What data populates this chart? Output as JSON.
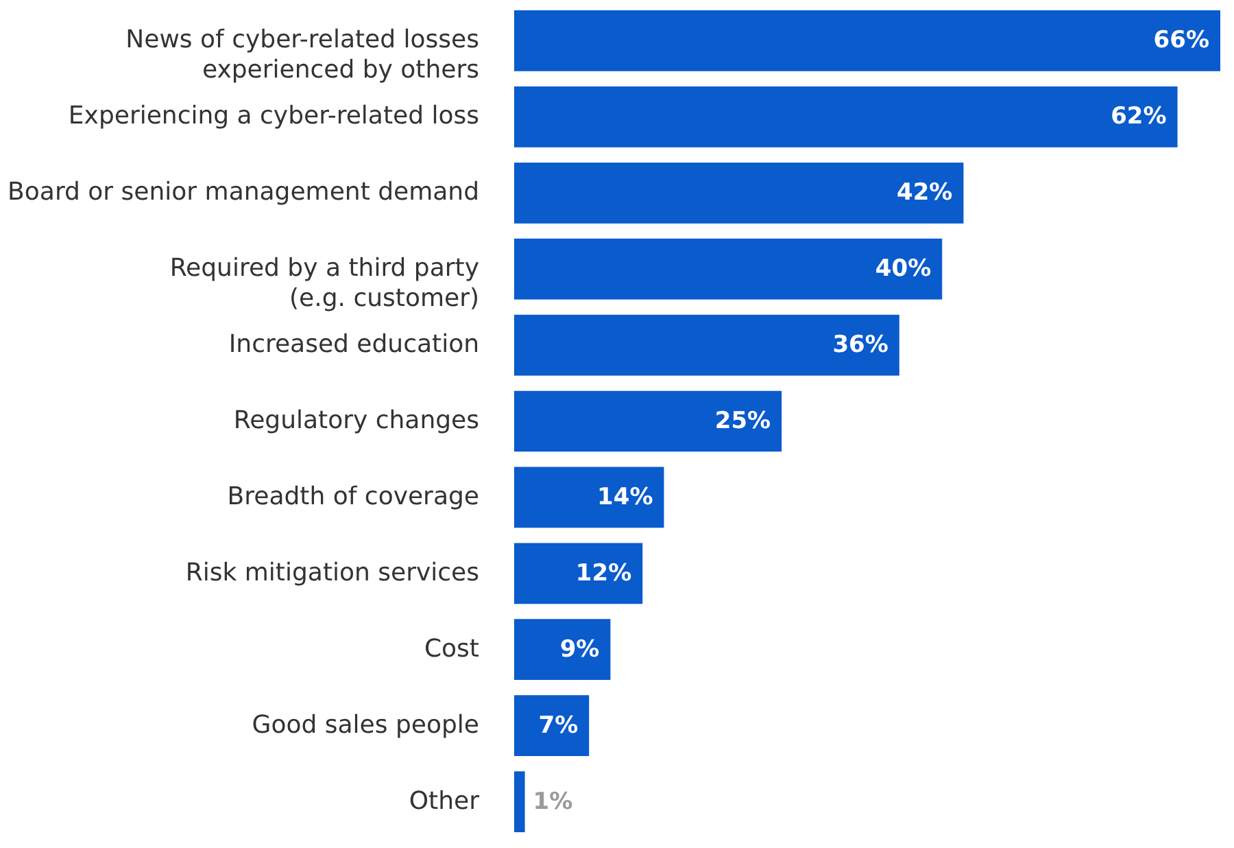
{
  "chart_data": {
    "type": "bar",
    "orientation": "horizontal",
    "tick_labels": "y",
    "value_labels": [
      "66%",
      "62%",
      "42%",
      "40%",
      "36%",
      "25%",
      "14%",
      "12%",
      "9%",
      "7%",
      "1%"
    ],
    "categories": [
      "News of cyber-related losses\nexperienced by others",
      "Experiencing a cyber-related loss",
      "Board or senior management demand",
      "Required by a third party\n(e.g. customer)",
      "Increased education",
      "Regulatory changes",
      "Breadth of coverage",
      "Risk mitigation services",
      "Cost",
      "Good sales people",
      "Other"
    ],
    "values": [
      66,
      62,
      42,
      40,
      36,
      25,
      14,
      12,
      9,
      7,
      1
    ],
    "color": "#0a5bcc"
  }
}
